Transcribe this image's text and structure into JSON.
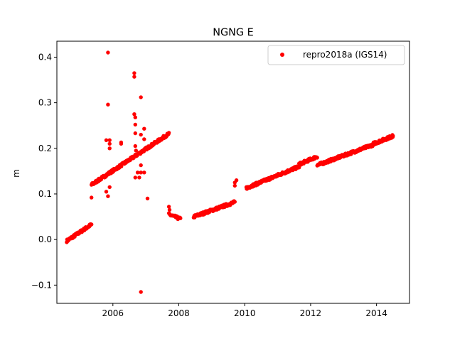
{
  "chart_data": {
    "type": "scatter",
    "title": "NGNG E",
    "xlabel": "",
    "ylabel": "m",
    "xlim": [
      2004.3,
      2015.0
    ],
    "ylim": [
      -0.14,
      0.435
    ],
    "xticks": [
      2006,
      2008,
      2010,
      2012,
      2014
    ],
    "xtick_labels": [
      "2006",
      "2008",
      "2010",
      "2012",
      "2014"
    ],
    "yticks": [
      -0.1,
      0.0,
      0.1,
      0.2,
      0.3,
      0.4
    ],
    "ytick_labels": [
      "−0.1",
      "0.0",
      "0.1",
      "0.2",
      "0.3",
      "0.4"
    ],
    "grid": false,
    "legend": {
      "position": "top-right"
    },
    "series": [
      {
        "name": "repro2018a (IGS14)",
        "color": "#ff0000",
        "marker": "circle",
        "segments": [
          {
            "x_start": 2004.6,
            "x_end": 2005.35,
            "y_start": -0.003,
            "y_end": 0.033,
            "count": 70
          },
          {
            "x_start": 2005.35,
            "x_end": 2007.7,
            "y_start": 0.12,
            "y_end": 0.232,
            "count": 190
          },
          {
            "x_start": 2007.7,
            "x_end": 2008.05,
            "y_start": 0.055,
            "y_end": 0.045,
            "count": 28
          },
          {
            "x_start": 2008.45,
            "x_end": 2009.7,
            "y_start": 0.05,
            "y_end": 0.082,
            "count": 120
          },
          {
            "x_start": 2010.05,
            "x_end": 2011.65,
            "y_start": 0.113,
            "y_end": 0.16,
            "count": 150
          },
          {
            "x_start": 2011.65,
            "x_end": 2012.2,
            "y_start": 0.165,
            "y_end": 0.182,
            "count": 45
          },
          {
            "x_start": 2012.2,
            "x_end": 2013.9,
            "y_start": 0.163,
            "y_end": 0.208,
            "count": 150
          },
          {
            "x_start": 2013.9,
            "x_end": 2014.5,
            "y_start": 0.21,
            "y_end": 0.227,
            "count": 70
          }
        ],
        "extra_points": [
          [
            2005.85,
            0.41
          ],
          [
            2006.65,
            0.365
          ],
          [
            2006.65,
            0.357
          ],
          [
            2006.85,
            0.312
          ],
          [
            2005.85,
            0.296
          ],
          [
            2006.65,
            0.275
          ],
          [
            2006.68,
            0.268
          ],
          [
            2006.68,
            0.252
          ],
          [
            2006.85,
            0.23
          ],
          [
            2006.68,
            0.233
          ],
          [
            2006.95,
            0.243
          ],
          [
            2006.95,
            0.22
          ],
          [
            2005.8,
            0.218
          ],
          [
            2005.9,
            0.218
          ],
          [
            2005.9,
            0.21
          ],
          [
            2005.9,
            0.2
          ],
          [
            2006.25,
            0.213
          ],
          [
            2006.25,
            0.21
          ],
          [
            2006.68,
            0.205
          ],
          [
            2006.7,
            0.195
          ],
          [
            2006.85,
            0.163
          ],
          [
            2006.75,
            0.147
          ],
          [
            2006.85,
            0.147
          ],
          [
            2006.95,
            0.147
          ],
          [
            2006.68,
            0.136
          ],
          [
            2006.8,
            0.136
          ],
          [
            2005.9,
            0.115
          ],
          [
            2005.8,
            0.105
          ],
          [
            2005.85,
            0.095
          ],
          [
            2005.35,
            0.092
          ],
          [
            2007.05,
            0.09
          ],
          [
            2007.7,
            0.072
          ],
          [
            2007.72,
            0.065
          ],
          [
            2009.7,
            0.125
          ],
          [
            2009.7,
            0.118
          ],
          [
            2009.75,
            0.13
          ],
          [
            2006.85,
            -0.115
          ]
        ]
      }
    ]
  }
}
